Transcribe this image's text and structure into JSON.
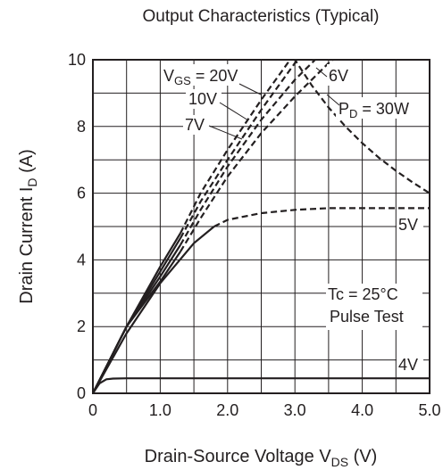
{
  "chart_data": {
    "type": "line",
    "title": "Output Characteristics (Typical)",
    "xlabel": {
      "main": "Drain-Source Voltage  V",
      "sub": "DS",
      "unit": "  (V)"
    },
    "ylabel": {
      "main": "Drain Current  I",
      "sub": "D",
      "unit": "  (A)"
    },
    "xlim": [
      0,
      5.0
    ],
    "ylim": [
      0,
      10
    ],
    "grid": true,
    "x_ticks": [
      {
        "value": 0,
        "label": "0"
      },
      {
        "value": 1.0,
        "label": "1.0"
      },
      {
        "value": 2.0,
        "label": "2.0"
      },
      {
        "value": 3.0,
        "label": "3.0"
      },
      {
        "value": 4.0,
        "label": "4.0"
      },
      {
        "value": 5.0,
        "label": "5.0"
      }
    ],
    "y_ticks": [
      {
        "value": 0,
        "label": "0"
      },
      {
        "value": 2,
        "label": "2"
      },
      {
        "value": 4,
        "label": "4"
      },
      {
        "value": 6,
        "label": "6"
      },
      {
        "value": 8,
        "label": "8"
      },
      {
        "value": 10,
        "label": "10"
      }
    ],
    "x_minor_grid_step": 0.5,
    "y_minor_grid_step": 1,
    "series": [
      {
        "name": "VGS = 20V",
        "style": "solid-dashed",
        "x": [
          0,
          0.5,
          1.0,
          1.3,
          1.6,
          2.0,
          2.5,
          3.0
        ],
        "y": [
          0,
          2.0,
          3.8,
          4.8,
          6.0,
          7.3,
          8.8,
          10.2
        ]
      },
      {
        "name": "10V",
        "style": "solid-dashed",
        "x": [
          0,
          0.5,
          1.0,
          1.3,
          1.6,
          2.0,
          2.5,
          3.0,
          3.1
        ],
        "y": [
          0,
          2.0,
          3.65,
          4.65,
          5.75,
          7.0,
          8.5,
          9.9,
          10.2
        ]
      },
      {
        "name": "7V",
        "style": "solid-dashed",
        "x": [
          0,
          0.5,
          1.0,
          1.3,
          1.6,
          2.0,
          2.5,
          3.0,
          3.4
        ],
        "y": [
          0,
          2.0,
          3.5,
          4.45,
          5.5,
          6.8,
          8.2,
          9.4,
          10.2
        ]
      },
      {
        "name": "6V",
        "style": "solid-dashed",
        "x": [
          0,
          0.5,
          1.0,
          1.3,
          1.6,
          2.0,
          2.5,
          3.0,
          3.5,
          3.7
        ],
        "y": [
          0,
          2.0,
          3.35,
          4.25,
          5.25,
          6.5,
          7.8,
          8.9,
          9.9,
          10.2
        ]
      },
      {
        "name": "5V",
        "style": "solid-dashed",
        "x": [
          0,
          0.5,
          1.0,
          1.5,
          1.8,
          2.0,
          2.5,
          3.0,
          3.5,
          4.0,
          4.5,
          5.0
        ],
        "y": [
          0,
          1.8,
          3.3,
          4.5,
          5.0,
          5.2,
          5.4,
          5.5,
          5.55,
          5.55,
          5.55,
          5.55
        ]
      },
      {
        "name": "4V",
        "style": "solid",
        "x": [
          0,
          0.1,
          0.2,
          0.3,
          0.5,
          1.0,
          2.0,
          3.0,
          4.0,
          5.0
        ],
        "y": [
          0,
          0.3,
          0.42,
          0.44,
          0.45,
          0.45,
          0.45,
          0.45,
          0.45,
          0.45
        ]
      },
      {
        "name": "PD = 30W",
        "style": "dashed",
        "x": [
          2.9,
          3.0,
          3.25,
          3.5,
          3.75,
          4.0,
          4.25,
          4.5,
          4.75,
          5.0
        ],
        "y": [
          10.3,
          10.0,
          9.23,
          8.57,
          8.0,
          7.5,
          7.06,
          6.67,
          6.32,
          6.0
        ]
      }
    ],
    "dash_from_x": {
      "VGS = 20V": 1.3,
      "10V": 1.3,
      "7V": 1.3,
      "6V": 1.3,
      "5V": 1.8
    },
    "annotations": {
      "vgs20": {
        "main": "V",
        "sub": "GS",
        "rest": " = 20V"
      },
      "v10": "10V",
      "v7": "7V",
      "v6": "6V",
      "pd": {
        "main": "P",
        "sub": "D",
        "rest": " = 30W"
      },
      "v5": "5V",
      "v4": "4V",
      "tc": "Tc = 25°C",
      "pulse": "Pulse Test"
    }
  }
}
